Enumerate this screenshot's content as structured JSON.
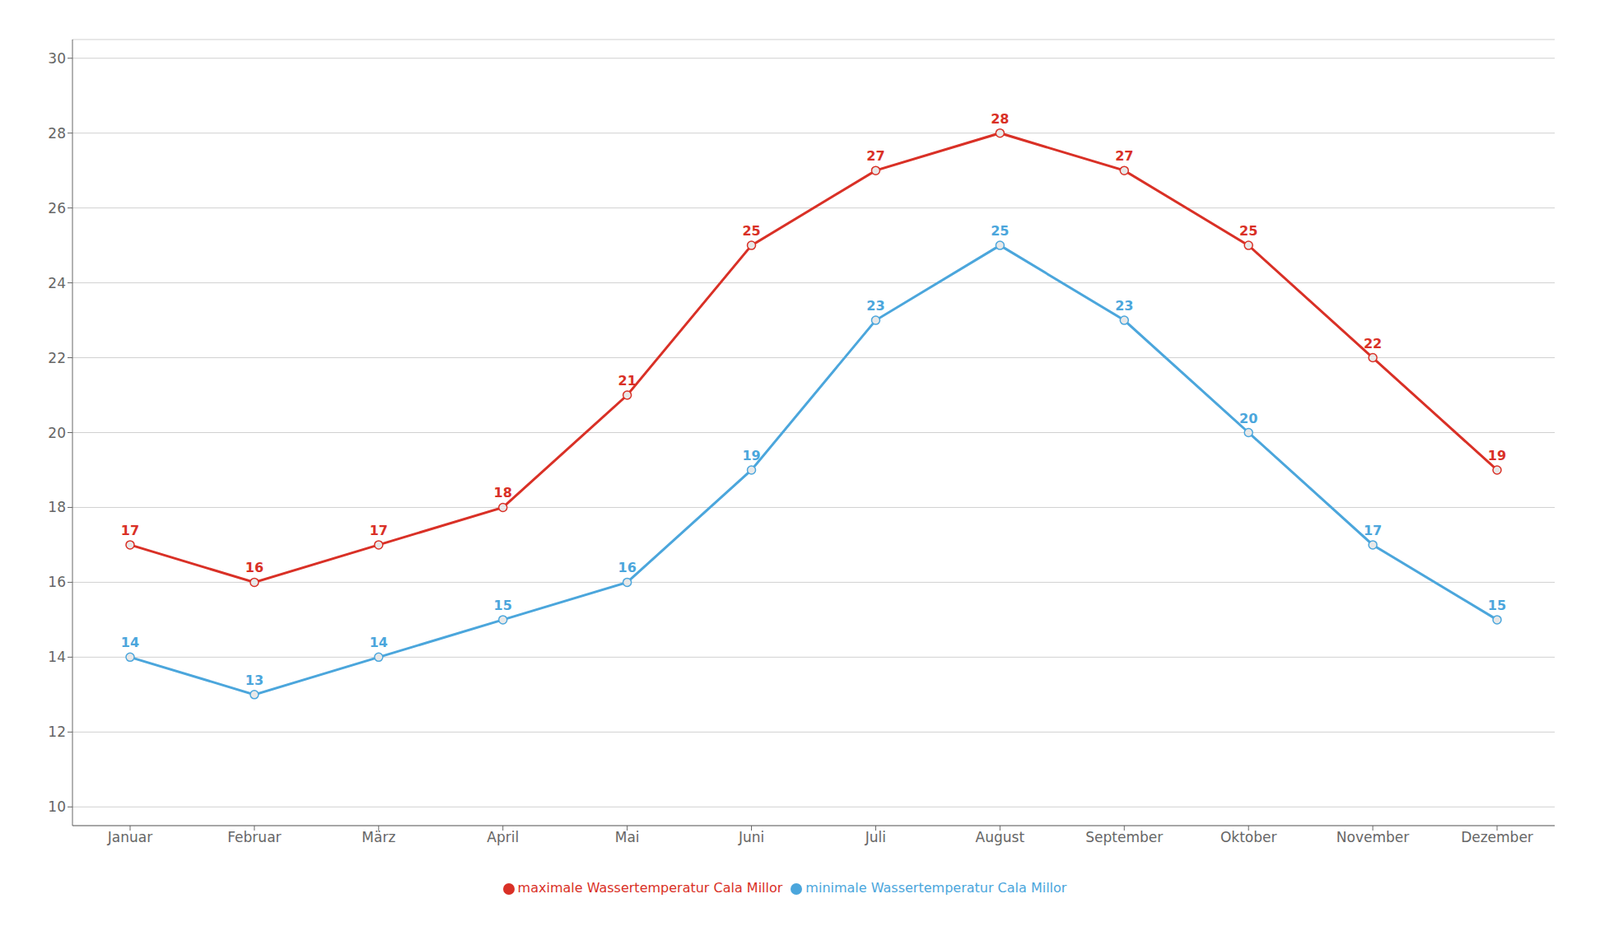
{
  "chart_data": {
    "type": "line",
    "categories": [
      "Januar",
      "Februar",
      "März",
      "April",
      "Mai",
      "Juni",
      "Juli",
      "August",
      "September",
      "Oktober",
      "November",
      "Dezember"
    ],
    "series": [
      {
        "name": "minimale Wassertemperatur Cala Millor",
        "color": "#4ba6dc",
        "values": [
          14,
          13,
          14,
          15,
          16,
          19,
          23,
          25,
          23,
          20,
          17,
          15
        ]
      },
      {
        "name": "maximale Wassertemperatur Cala Millor",
        "color": "#d93026",
        "values": [
          17,
          16,
          17,
          18,
          21,
          25,
          27,
          28,
          27,
          25,
          22,
          19
        ]
      }
    ],
    "ylim": [
      9.5,
      30.5
    ],
    "yticks": [
      10,
      12,
      14,
      16,
      18,
      20,
      22,
      24,
      26,
      28,
      30
    ],
    "grid": true,
    "legend": "bottom",
    "data_labels": true,
    "marker": "circle"
  }
}
